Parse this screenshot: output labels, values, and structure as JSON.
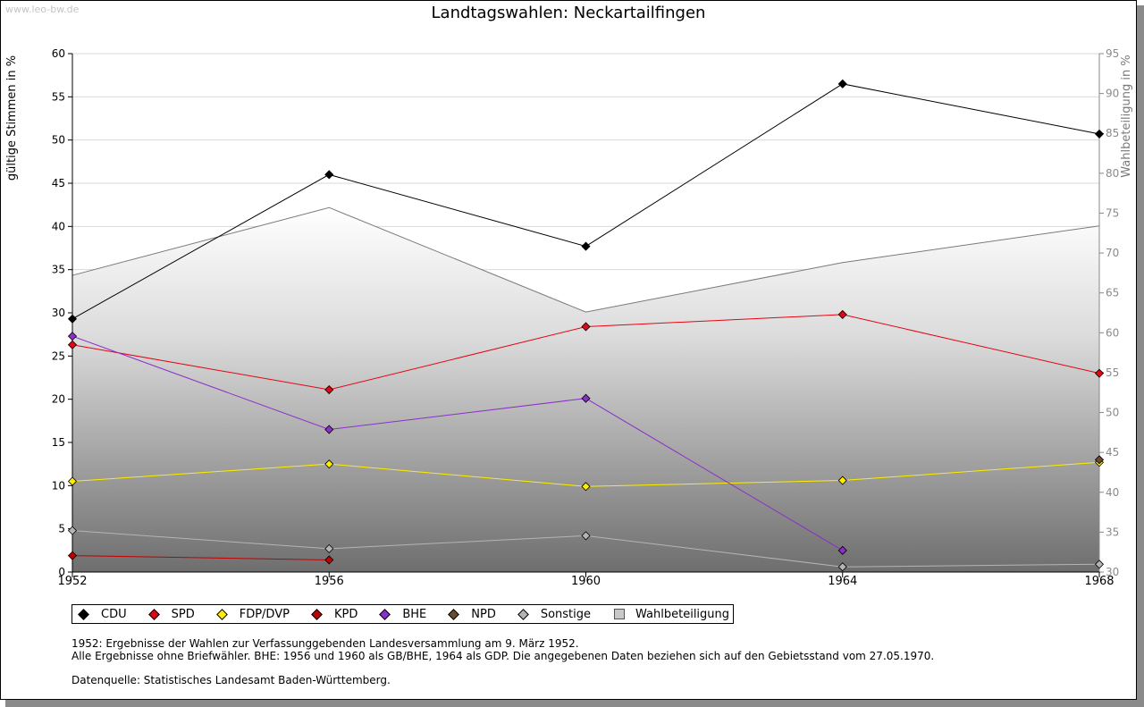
{
  "watermark": "www.leo-bw.de",
  "chart_data": {
    "type": "line",
    "title": "Landtagswahlen: Neckartailfingen",
    "x": [
      "1952",
      "1956",
      "1960",
      "1964",
      "1968"
    ],
    "ylabel": "gültige Stimmen in %",
    "ylim": [
      0,
      60
    ],
    "yticks": [
      0,
      5,
      10,
      15,
      20,
      25,
      30,
      35,
      40,
      45,
      50,
      55,
      60
    ],
    "y2label": "Wahlbeteiligung in %",
    "y2lim": [
      30,
      95
    ],
    "y2ticks": [
      30,
      35,
      40,
      45,
      50,
      55,
      60,
      65,
      70,
      75,
      80,
      85,
      90,
      95
    ],
    "grid": true,
    "legend_position": "bottom",
    "series": [
      {
        "name": "CDU",
        "color": "#000000",
        "values": [
          29.3,
          46.0,
          37.7,
          56.5,
          50.7
        ]
      },
      {
        "name": "SPD",
        "color": "#e30613",
        "values": [
          26.3,
          21.1,
          28.4,
          29.8,
          23.0
        ]
      },
      {
        "name": "FDP/DVP",
        "color": "#ffed00",
        "values": [
          10.5,
          12.5,
          9.9,
          10.6,
          12.7
        ]
      },
      {
        "name": "KPD",
        "color": "#c00000",
        "values": [
          1.9,
          1.4,
          null,
          null,
          null
        ]
      },
      {
        "name": "BHE",
        "color": "#8b2fc9",
        "values": [
          27.3,
          16.5,
          20.1,
          2.5,
          null
        ]
      },
      {
        "name": "NPD",
        "color": "#6b4a2e",
        "values": [
          null,
          null,
          null,
          null,
          13.0
        ]
      },
      {
        "name": "Sonstige",
        "color": "#b4b4b4",
        "values": [
          4.8,
          2.7,
          4.2,
          0.6,
          0.9
        ]
      }
    ],
    "turnout": {
      "name": "Wahlbeteiligung",
      "axis": "right",
      "values": [
        67.2,
        75.7,
        62.6,
        68.8,
        73.4
      ]
    }
  },
  "legend": [
    {
      "label": "CDU",
      "color": "#000000"
    },
    {
      "label": "SPD",
      "color": "#e30613"
    },
    {
      "label": "FDP/DVP",
      "color": "#ffed00"
    },
    {
      "label": "KPD",
      "color": "#c00000"
    },
    {
      "label": "BHE",
      "color": "#8b2fc9"
    },
    {
      "label": "NPD",
      "color": "#6b4a2e"
    },
    {
      "label": "Sonstige",
      "color": "#b4b4b4"
    },
    {
      "label": "Wahlbeteiligung",
      "color": "#c8c8c8"
    }
  ],
  "notes": {
    "line1": "1952: Ergebnisse der Wahlen zur Verfassunggebenden Landesversammlung am 9. März 1952.",
    "line2": "Alle Ergebnisse ohne Briefwähler. BHE: 1956 und 1960 als GB/BHE, 1964 als GDP. Die angegebenen Daten beziehen sich auf den Gebietsstand vom 27.05.1970.",
    "source": "Datenquelle: Statistisches Landesamt Baden-Württemberg."
  }
}
